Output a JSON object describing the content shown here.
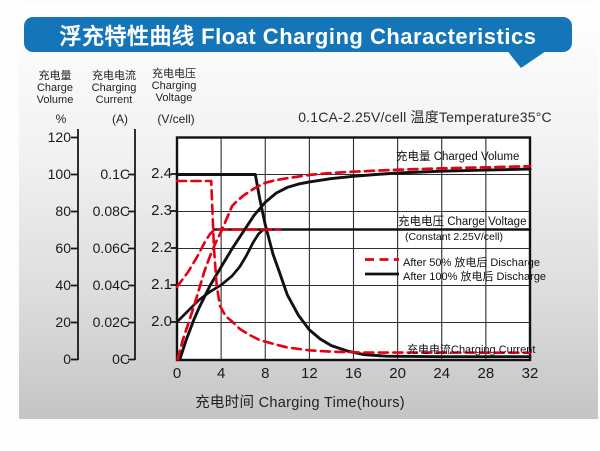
{
  "header": {
    "title": "浮充特性曲线 Float Charging Characteristics",
    "banner_color": "#1476B9"
  },
  "condition": "0.1CA-2.25V/cell  温度Temperature35°C",
  "axis_headers": {
    "volume": {
      "cn": "充电量",
      "en1": "Charge",
      "en2": "Volume",
      "unit": "%"
    },
    "current": {
      "cn": "充电电流",
      "en1": "Charging",
      "en2": "Current",
      "unit": "(A)"
    },
    "voltage": {
      "cn": "充电电压",
      "en1": "Charging",
      "en2": "Voltage",
      "unit": "(V/cell)"
    }
  },
  "inplot_labels": {
    "charged_volume": "充电量 Charged Volume",
    "charge_voltage": "充电电压 Charge Voltage",
    "charge_voltage_sub": "(Constant 2.25V/cell)",
    "charging_current": "充电电流Charging Current"
  },
  "legend": [
    {
      "label": "After 50%  放电后 Discharge",
      "style": "dashed",
      "color": "#E60014"
    },
    {
      "label": "After 100%  放电后 Discharge",
      "style": "solid",
      "color": "#111111"
    }
  ],
  "x_axis": {
    "title": "充电时间 Charging Time(hours)"
  },
  "chart_data": {
    "type": "line",
    "xlabel": "Charging Time (hours)",
    "x_range": [
      0,
      32
    ],
    "x_ticks": [
      [
        "0",
        0
      ],
      [
        "4",
        4
      ],
      [
        "8",
        8
      ],
      [
        "12",
        12
      ],
      [
        "16",
        16
      ],
      [
        "20",
        20
      ],
      [
        "24",
        24
      ],
      [
        "28",
        28
      ],
      [
        "32",
        32
      ]
    ],
    "percent_axis": {
      "label": "Charge Volume (%)",
      "range": [
        0,
        120
      ],
      "ticks": [
        [
          "120",
          120
        ],
        [
          "100",
          100
        ],
        [
          "80",
          80
        ],
        [
          "60",
          60
        ],
        [
          "40",
          40
        ],
        [
          "20",
          20
        ],
        [
          "0",
          0
        ]
      ]
    },
    "current_axis": {
      "label": "Charging Current (A)",
      "range": [
        0,
        0.12
      ],
      "ticks": [
        [
          "0.1C",
          0.1
        ],
        [
          "0.08C",
          0.08
        ],
        [
          "0.06C",
          0.06
        ],
        [
          "0.04C",
          0.04
        ],
        [
          "0.02C",
          0.02
        ],
        [
          "0C",
          0
        ]
      ]
    },
    "voltage_axis": {
      "label": "Charging Voltage (V/cell)",
      "range": [
        1.95,
        2.45
      ],
      "ticks": [
        [
          "2.4",
          2.4
        ],
        [
          "2.3",
          2.3
        ],
        [
          "2.2",
          2.2
        ],
        [
          "2.1",
          2.1
        ],
        [
          "2.0",
          2.0
        ]
      ]
    },
    "grid": true,
    "series": [
      {
        "name": "charge-voltage-constant-line",
        "axis": "voltage",
        "color": "#111111",
        "style": "solid",
        "width": 2.6,
        "points": [
          [
            3.4,
            2.25
          ],
          [
            32,
            2.25
          ]
        ]
      },
      {
        "name": "black-volume-after-100-discharge",
        "axis": "percent",
        "color": "#111111",
        "style": "solid",
        "width": 2.9,
        "points": [
          [
            0.25,
            0
          ],
          [
            0.8,
            10
          ],
          [
            1.5,
            21
          ],
          [
            2,
            28
          ],
          [
            3,
            40
          ],
          [
            4,
            50
          ],
          [
            5,
            60
          ],
          [
            6,
            69
          ],
          [
            7,
            78
          ],
          [
            8,
            85
          ],
          [
            9,
            90
          ],
          [
            10,
            93
          ],
          [
            11,
            94.8
          ],
          [
            12,
            96
          ],
          [
            14,
            97.8
          ],
          [
            16,
            99
          ],
          [
            18,
            100
          ],
          [
            20,
            100.8
          ],
          [
            24,
            101.8
          ],
          [
            28,
            102.4
          ],
          [
            32,
            102.9
          ]
        ]
      },
      {
        "name": "black-voltage-after-100-discharge",
        "axis": "voltage",
        "color": "#111111",
        "style": "solid",
        "width": 2.7,
        "points": [
          [
            0,
            2.0
          ],
          [
            1,
            2.03
          ],
          [
            2,
            2.06
          ],
          [
            3,
            2.082
          ],
          [
            4,
            2.1
          ],
          [
            5,
            2.125
          ],
          [
            5.7,
            2.15
          ],
          [
            6.3,
            2.18
          ],
          [
            6.9,
            2.215
          ],
          [
            7.4,
            2.238
          ],
          [
            7.8,
            2.249
          ],
          [
            8.2,
            2.25
          ]
        ]
      },
      {
        "name": "black-current-after-100-discharge",
        "axis": "current",
        "color": "#111111",
        "style": "solid",
        "width": 2.9,
        "points": [
          [
            0,
            0.1
          ],
          [
            7.1,
            0.1
          ],
          [
            7.5,
            0.087
          ],
          [
            8,
            0.073
          ],
          [
            8.7,
            0.057
          ],
          [
            9.3,
            0.047
          ],
          [
            10,
            0.035
          ],
          [
            11,
            0.024
          ],
          [
            12,
            0.016
          ],
          [
            13,
            0.011
          ],
          [
            14,
            0.0075
          ],
          [
            15.5,
            0.0045
          ],
          [
            17,
            0.0026
          ],
          [
            19,
            0.0018
          ],
          [
            24,
            0.0015
          ],
          [
            32,
            0.0015
          ]
        ]
      },
      {
        "name": "red-volume-after-50-discharge",
        "axis": "percent",
        "color": "#E60014",
        "style": "dashed",
        "width": 2.7,
        "points": [
          [
            0.05,
            0
          ],
          [
            0.5,
            10
          ],
          [
            1,
            19
          ],
          [
            1.5,
            28
          ],
          [
            2,
            38
          ],
          [
            2.5,
            48
          ],
          [
            3,
            56
          ],
          [
            3.5,
            63
          ],
          [
            4,
            69
          ],
          [
            4.5,
            76
          ],
          [
            5,
            83
          ],
          [
            5.5,
            86
          ],
          [
            6,
            88.5
          ],
          [
            7,
            92.5
          ],
          [
            8,
            95.5
          ],
          [
            9,
            97
          ],
          [
            10,
            98
          ],
          [
            12,
            99.8
          ],
          [
            14,
            100.8
          ],
          [
            16,
            101.5
          ],
          [
            20,
            102.6
          ],
          [
            24,
            103.3
          ],
          [
            28,
            103.9
          ],
          [
            32,
            104.5
          ]
        ]
      },
      {
        "name": "red-voltage-after-50-discharge",
        "axis": "voltage",
        "color": "#E60014",
        "style": "dashed",
        "width": 2.6,
        "points": [
          [
            0,
            2.095
          ],
          [
            1,
            2.135
          ],
          [
            1.8,
            2.175
          ],
          [
            2.5,
            2.215
          ],
          [
            3,
            2.238
          ],
          [
            3.4,
            2.25
          ],
          [
            9.3,
            2.25
          ]
        ]
      },
      {
        "name": "red-current-after-50-discharge",
        "axis": "current",
        "color": "#E60014",
        "style": "dashed",
        "width": 2.6,
        "points": [
          [
            0,
            0.0965
          ],
          [
            3.1,
            0.0965
          ],
          [
            3.35,
            0.06
          ],
          [
            3.6,
            0.04
          ],
          [
            3.9,
            0.029
          ],
          [
            4.4,
            0.0235
          ],
          [
            5,
            0.0205
          ],
          [
            5.7,
            0.0165
          ],
          [
            6.5,
            0.0135
          ],
          [
            7.5,
            0.0105
          ],
          [
            8.7,
            0.0085
          ],
          [
            10,
            0.0065
          ],
          [
            12,
            0.005
          ],
          [
            14,
            0.0042
          ],
          [
            17,
            0.0038
          ],
          [
            32,
            0.0037
          ]
        ]
      }
    ]
  }
}
